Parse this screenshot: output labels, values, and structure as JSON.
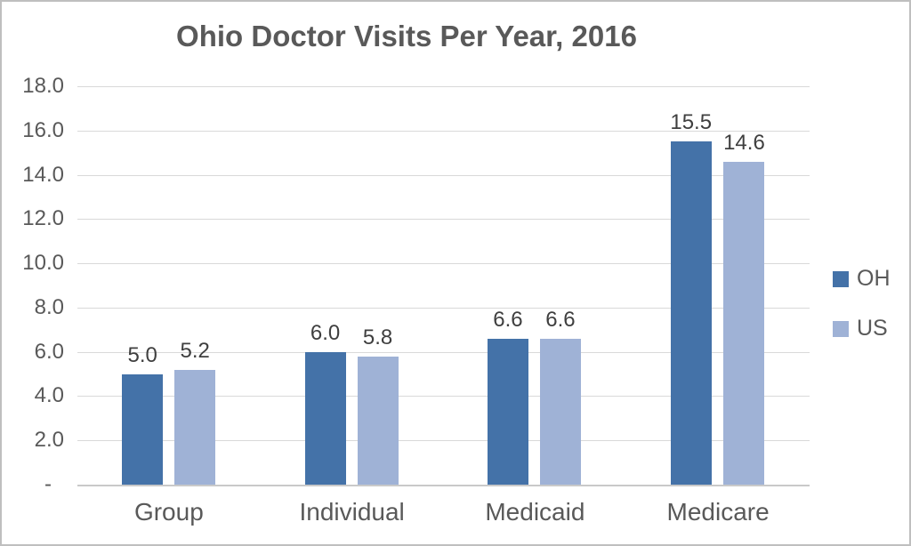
{
  "title": "Ohio Doctor Visits Per Year, 2016",
  "chart_data": {
    "type": "bar",
    "title": "Ohio Doctor Visits Per Year, 2016",
    "categories": [
      "Group",
      "Individual",
      "Medicaid",
      "Medicare"
    ],
    "series": [
      {
        "name": "OH",
        "color": "#4472a8",
        "values": [
          5.0,
          6.0,
          6.6,
          15.5
        ]
      },
      {
        "name": "US",
        "color": "#9fb2d6",
        "values": [
          5.2,
          5.8,
          6.6,
          14.6
        ]
      }
    ],
    "value_label_format": "0.1f",
    "data_labels": true,
    "xlabel": "",
    "ylabel": "",
    "ylim": [
      0,
      18
    ],
    "y_ticks": [
      {
        "value": 18,
        "label": "18.0"
      },
      {
        "value": 16,
        "label": "16.0"
      },
      {
        "value": 14,
        "label": "14.0"
      },
      {
        "value": 12,
        "label": "12.0"
      },
      {
        "value": 10,
        "label": "10.0"
      },
      {
        "value": 8,
        "label": "8.0"
      },
      {
        "value": 6,
        "label": "6.0"
      },
      {
        "value": 4,
        "label": "4.0"
      },
      {
        "value": 2,
        "label": "2.0"
      },
      {
        "value": 0,
        "label": "-"
      }
    ],
    "grid": true,
    "legend_position": "right"
  },
  "colors": {
    "title_text": "#595959",
    "axis_text": "#595959",
    "data_label_text": "#3f3f3f",
    "gridline": "#d9d9d9",
    "axis_line": "#c9c9c9",
    "frame_border": "#bfbfbf",
    "series_oh": "#4472a8",
    "series_us": "#9fb2d6"
  }
}
